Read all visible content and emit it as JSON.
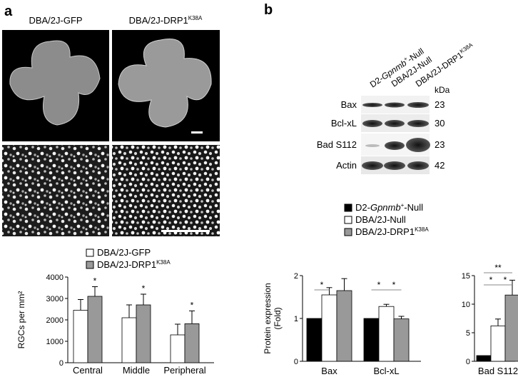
{
  "panel_a": {
    "letter": "a",
    "col_labels": [
      "DBA/2J-GFP",
      "DBA/2J-DRP1"
    ],
    "col2_superscript": "K38A",
    "legend": [
      {
        "label": "DBA/2J-GFP",
        "sup": "",
        "color": "#ffffff"
      },
      {
        "label": "DBA/2J-DRP1",
        "sup": "K38A",
        "color": "#999999"
      }
    ]
  },
  "panel_b": {
    "letter": "b",
    "lane_labels": [
      {
        "pre": "D2-",
        "ital": "Gpnmb",
        "sup": "+",
        "post": "-Null"
      },
      {
        "pre": "DBA/2J-Null",
        "ital": "",
        "sup": "",
        "post": ""
      },
      {
        "pre": "DBA/2J-DRP1",
        "ital": "",
        "sup": "K38A",
        "post": ""
      }
    ],
    "kda_header": "kDa",
    "blots": [
      {
        "protein": "Bax",
        "kda": "23"
      },
      {
        "protein": "Bcl-xL",
        "kda": "30"
      },
      {
        "protein": "Bad S112",
        "kda": "23"
      },
      {
        "protein": "Actin",
        "kda": "42"
      }
    ],
    "legend": [
      {
        "pre": "D2-",
        "ital": "Gpnmb",
        "sup": "+",
        "post": "-Null",
        "color": "#000000"
      },
      {
        "pre": "DBA/2J-Null",
        "ital": "",
        "sup": "",
        "post": "",
        "color": "#ffffff"
      },
      {
        "pre": "DBA/2J-DRP1",
        "ital": "",
        "sup": "K38A",
        "post": "",
        "color": "#999999"
      }
    ]
  },
  "chart_data": [
    {
      "type": "bar",
      "ylabel": "RGCs per mm²",
      "categories": [
        "Central",
        "Middle",
        "Peripheral"
      ],
      "series": [
        {
          "name": "DBA/2J-GFP",
          "values": [
            2450,
            2100,
            1300
          ],
          "errors": [
            500,
            600,
            500
          ],
          "color": "#ffffff"
        },
        {
          "name": "DBA/2J-DRP1K38A",
          "values": [
            3100,
            2700,
            1820
          ],
          "errors": [
            450,
            500,
            600
          ],
          "color": "#999999"
        }
      ],
      "yticks": [
        0,
        1000,
        2000,
        3000,
        4000
      ],
      "ylim": [
        0,
        4000
      ],
      "significance": [
        {
          "category": "Central",
          "label": "*"
        },
        {
          "category": "Middle",
          "label": "*"
        },
        {
          "category": "Peripheral",
          "label": "*"
        }
      ]
    },
    {
      "type": "bar",
      "ylabel": "Protein expression (Fold)",
      "categories": [
        "Bax",
        "Bcl-xL"
      ],
      "series": [
        {
          "name": "D2-Gpnmb+-Null",
          "values": [
            1.0,
            1.0
          ],
          "errors": [
            0,
            0
          ],
          "color": "#000000"
        },
        {
          "name": "DBA/2J-Null",
          "values": [
            1.55,
            1.28
          ],
          "errors": [
            0.17,
            0.05
          ],
          "color": "#ffffff"
        },
        {
          "name": "DBA/2J-DRP1K38A",
          "values": [
            1.65,
            0.99
          ],
          "errors": [
            0.28,
            0.06
          ],
          "color": "#999999"
        }
      ],
      "yticks": [
        0,
        1,
        2
      ],
      "ylim": [
        0,
        2
      ],
      "significance": [
        {
          "category": "Bax",
          "from": 0,
          "to": 1,
          "label": "*"
        },
        {
          "category": "Bcl-xL",
          "from": 0,
          "to": 1,
          "label": "*"
        },
        {
          "category": "Bcl-xL",
          "from": 1,
          "to": 2,
          "label": "*"
        }
      ]
    },
    {
      "type": "bar",
      "categories": [
        "Bad S112"
      ],
      "series": [
        {
          "name": "D2-Gpnmb+-Null",
          "values": [
            1.0
          ],
          "errors": [
            0
          ],
          "color": "#000000"
        },
        {
          "name": "DBA/2J-Null",
          "values": [
            6.2
          ],
          "errors": [
            1.2
          ],
          "color": "#ffffff"
        },
        {
          "name": "DBA/2J-DRP1K38A",
          "values": [
            11.6
          ],
          "errors": [
            2.6
          ],
          "color": "#999999"
        }
      ],
      "yticks": [
        0,
        5,
        10,
        15
      ],
      "ylim": [
        0,
        15
      ],
      "significance": [
        {
          "category": "Bad S112",
          "from": 0,
          "to": 1,
          "label": "*"
        },
        {
          "category": "Bad S112",
          "from": 1,
          "to": 2,
          "label": "*"
        },
        {
          "category": "Bad S112",
          "from": 0,
          "to": 2,
          "label": "**"
        }
      ]
    }
  ]
}
